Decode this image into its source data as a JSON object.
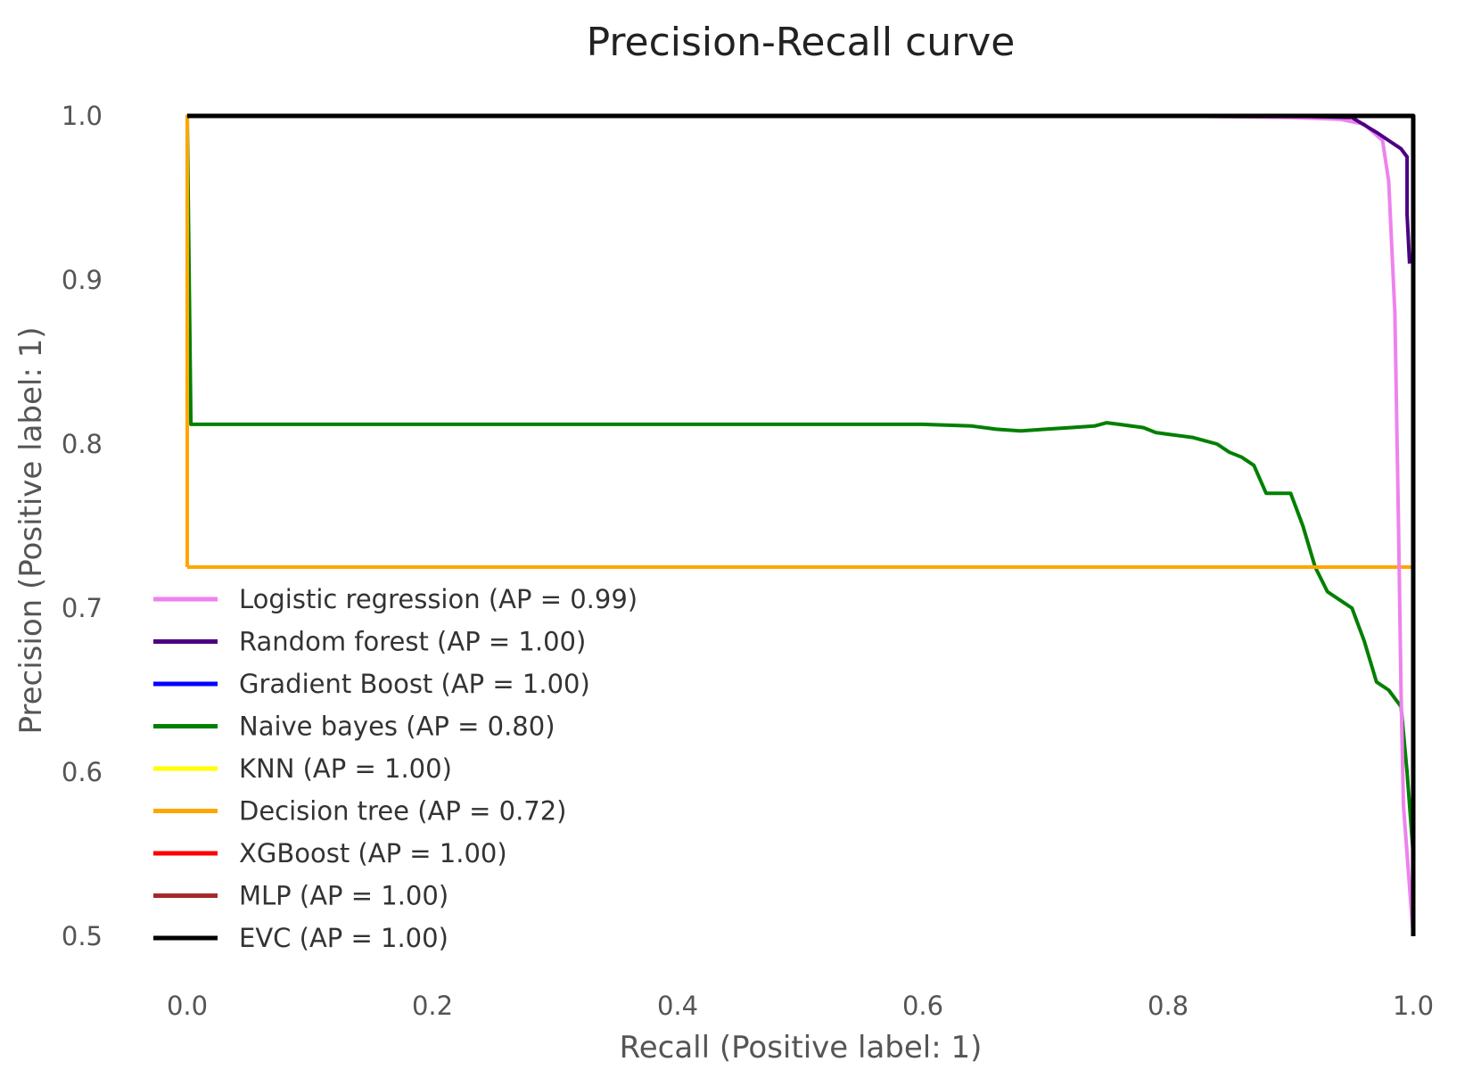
{
  "chart_data": {
    "type": "line",
    "title": "Precision-Recall curve",
    "xlabel": "Recall (Positive label: 1)",
    "ylabel": "Precision (Positive label: 1)",
    "xlim": [
      0.0,
      1.0
    ],
    "ylim": [
      0.5,
      1.0
    ],
    "xticks": [
      "0.0",
      "0.2",
      "0.4",
      "0.6",
      "0.8",
      "1.0"
    ],
    "yticks": [
      "0.5",
      "0.6",
      "0.7",
      "0.8",
      "0.9",
      "1.0"
    ],
    "grid": false,
    "legend_position": "lower-left",
    "series": [
      {
        "name": "Logistic regression",
        "label": "Logistic regression (AP = 0.99)",
        "color": "#ee82ee",
        "x": [
          0.0,
          0.003,
          0.3,
          0.6,
          0.8,
          0.9,
          0.94,
          0.96,
          0.975,
          0.98,
          0.985,
          0.988,
          0.99,
          0.992,
          1.0
        ],
        "y": [
          1.0,
          1.0,
          1.0,
          1.0,
          1.0,
          0.999,
          0.998,
          0.995,
          0.985,
          0.96,
          0.88,
          0.75,
          0.65,
          0.58,
          0.5
        ]
      },
      {
        "name": "Random forest",
        "label": "Random forest (AP = 1.00)",
        "color": "#4b0082",
        "x": [
          0.0,
          0.5,
          0.66,
          0.8,
          0.9,
          0.95,
          0.97,
          0.98,
          0.99,
          0.995,
          0.995,
          0.997
        ],
        "y": [
          1.0,
          1.0,
          1.0,
          1.0,
          1.0,
          0.999,
          0.99,
          0.985,
          0.98,
          0.975,
          0.94,
          0.91
        ]
      },
      {
        "name": "Gradient Boost",
        "label": "Gradient Boost (AP = 1.00)",
        "color": "#0000ff",
        "x": [
          0.0,
          1.0,
          1.0
        ],
        "y": [
          1.0,
          1.0,
          0.5
        ]
      },
      {
        "name": "Naive bayes",
        "label": "Naive bayes (AP = 0.80)",
        "color": "#008000",
        "x": [
          0.0,
          0.003,
          0.3,
          0.6,
          0.64,
          0.66,
          0.68,
          0.7,
          0.72,
          0.74,
          0.75,
          0.76,
          0.78,
          0.79,
          0.8,
          0.81,
          0.82,
          0.83,
          0.84,
          0.85,
          0.86,
          0.87,
          0.88,
          0.9,
          0.91,
          0.92,
          0.93,
          0.94,
          0.95,
          0.96,
          0.97,
          0.98,
          0.99,
          0.995,
          1.0
        ],
        "y": [
          1.0,
          0.812,
          0.812,
          0.812,
          0.811,
          0.809,
          0.808,
          0.809,
          0.81,
          0.811,
          0.813,
          0.812,
          0.81,
          0.807,
          0.806,
          0.805,
          0.804,
          0.802,
          0.8,
          0.795,
          0.792,
          0.787,
          0.77,
          0.77,
          0.75,
          0.725,
          0.71,
          0.705,
          0.7,
          0.68,
          0.655,
          0.65,
          0.64,
          0.6,
          0.55
        ]
      },
      {
        "name": "KNN",
        "label": "KNN (AP = 1.00)",
        "color": "#ffff00",
        "x": [
          0.0,
          1.0,
          1.0
        ],
        "y": [
          1.0,
          1.0,
          0.5
        ]
      },
      {
        "name": "Decision tree",
        "label": "Decision tree (AP = 0.72)",
        "color": "#ffa500",
        "x": [
          0.0,
          0.0,
          1.0,
          1.0,
          0.0
        ],
        "y": [
          0.725,
          1.0,
          1.0,
          0.725,
          0.725
        ]
      },
      {
        "name": "XGBoost",
        "label": "XGBoost (AP = 1.00)",
        "color": "#ff0000",
        "x": [
          0.0,
          1.0,
          1.0
        ],
        "y": [
          1.0,
          1.0,
          0.5
        ]
      },
      {
        "name": "MLP",
        "label": "MLP (AP = 1.00)",
        "color": "#a52a2a",
        "x": [
          0.0,
          1.0,
          1.0
        ],
        "y": [
          1.0,
          1.0,
          0.5
        ]
      },
      {
        "name": "EVC",
        "label": "EVC (AP = 1.00)",
        "color": "#000000",
        "x": [
          0.0,
          1.0,
          1.0
        ],
        "y": [
          1.0,
          1.0,
          0.5
        ]
      }
    ]
  }
}
